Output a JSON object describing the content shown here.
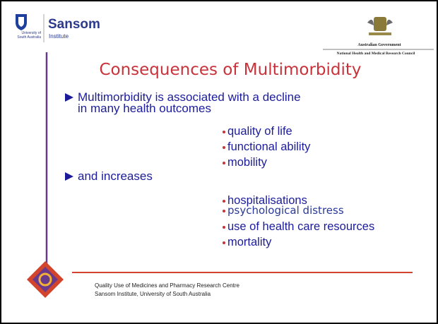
{
  "header": {
    "university": "University of South Australia",
    "name": "Sansom",
    "subtitle": "Institute"
  },
  "partner": {
    "government": "Australian Government",
    "council": "National Health and Medical Research Council"
  },
  "title": "Consequences of Multimorbidity",
  "sections": [
    {
      "text": "Multimorbidity is associated with a decline in many health outcomes",
      "items": [
        "quality of life",
        "functional ability",
        "mobility"
      ]
    },
    {
      "text": "and increases",
      "items": [
        "hospitalisations",
        "psychological distress",
        "use of health care resources",
        "mortality"
      ]
    }
  ],
  "footer": [
    "Quality Use of Medicines and Pharmacy Research Centre",
    "Sansom Institute, University of South Australia"
  ]
}
